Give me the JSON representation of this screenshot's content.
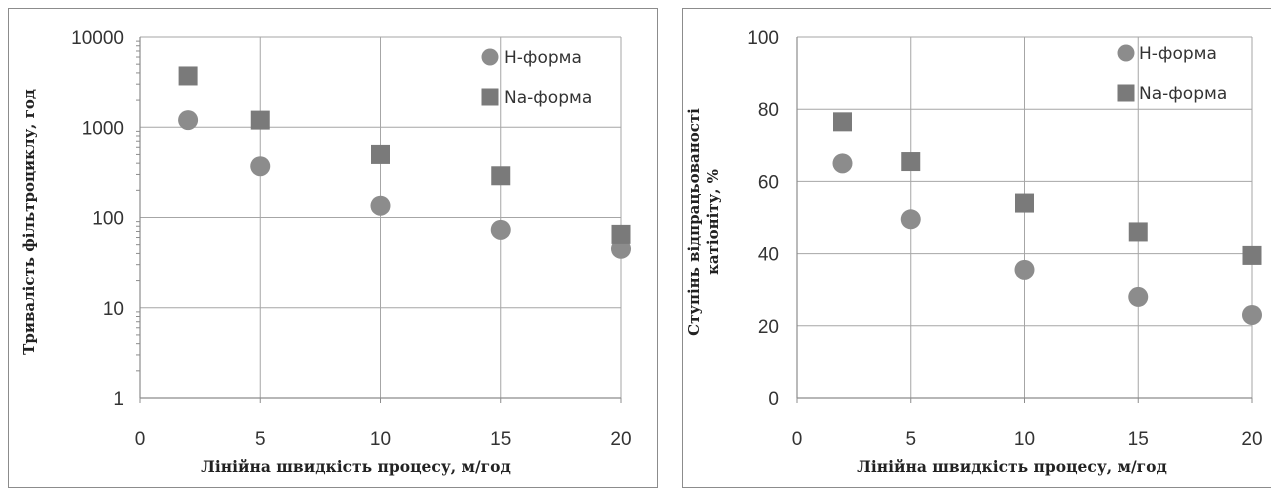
{
  "chart_data": [
    {
      "type": "scatter",
      "xlabel": "Лінійна швидкість процесу, м/год",
      "ylabel": "Тривалість фільтроциклу, год",
      "ylabel_lines": [
        "Тривалість фільтроциклу, год"
      ],
      "xlim": [
        0,
        20
      ],
      "ylim": [
        1,
        10000
      ],
      "y_scale": "log",
      "x_ticks": [
        0,
        5,
        10,
        15,
        20
      ],
      "y_ticks": [
        1,
        10,
        100,
        1000,
        10000
      ],
      "x_tick_labels": [
        "0",
        "5",
        "10",
        "15",
        "20"
      ],
      "y_tick_labels": [
        "1",
        "10",
        "100",
        "1000",
        "10000"
      ],
      "grid": true,
      "legend_position": "top-right",
      "series": [
        {
          "name": "Н-форма",
          "marker": "circle",
          "color": "#8c8c8c",
          "x": [
            2,
            5,
            10,
            15,
            20
          ],
          "y": [
            1200,
            370,
            135,
            73,
            45
          ]
        },
        {
          "name": "Na-форма",
          "marker": "square",
          "color": "#7a7a7a",
          "x": [
            2,
            5,
            10,
            15,
            20
          ],
          "y": [
            3700,
            1200,
            500,
            290,
            65
          ]
        }
      ]
    },
    {
      "type": "scatter",
      "xlabel": "Лінійна швидкість процесу, м/год",
      "ylabel": "Ступінь відпрацьованості катіоніту, %",
      "ylabel_lines": [
        "Ступінь відпрацьованості",
        "катіоніту, %"
      ],
      "xlim": [
        0,
        20
      ],
      "ylim": [
        0,
        100
      ],
      "y_scale": "linear",
      "x_ticks": [
        0,
        5,
        10,
        15,
        20
      ],
      "y_ticks": [
        0,
        20,
        40,
        60,
        80,
        100
      ],
      "x_tick_labels": [
        "0",
        "5",
        "10",
        "15",
        "20"
      ],
      "y_tick_labels": [
        "0",
        "20",
        "40",
        "60",
        "80",
        "100"
      ],
      "grid": true,
      "legend_position": "top-right",
      "series": [
        {
          "name": "Н-форма",
          "marker": "circle",
          "color": "#8c8c8c",
          "x": [
            2,
            5,
            10,
            15,
            20
          ],
          "y": [
            65,
            49.5,
            35.5,
            28,
            23
          ]
        },
        {
          "name": "Na-форма",
          "marker": "square",
          "color": "#7a7a7a",
          "x": [
            2,
            5,
            10,
            15,
            20
          ],
          "y": [
            76.5,
            65.5,
            54,
            46,
            39.5
          ]
        }
      ]
    }
  ]
}
